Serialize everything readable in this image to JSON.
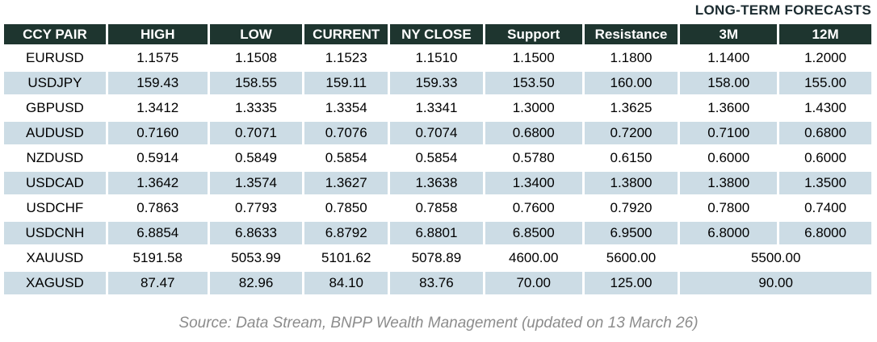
{
  "chart_data": {
    "type": "table",
    "title": "LONG-TERM FORECASTS",
    "columns": [
      "CCY PAIR",
      "HIGH",
      "LOW",
      "CURRENT",
      "NY CLOSE",
      "Support",
      "Resistance",
      "3M",
      "12M"
    ],
    "long_term_forecast_columns": [
      "3M",
      "12M"
    ],
    "rows": [
      {
        "pair": "EURUSD",
        "high": "1.1575",
        "low": "1.1508",
        "current": "1.1523",
        "ny_close": "1.1510",
        "support": "1.1500",
        "resistance": "1.1800",
        "m3": "1.1400",
        "m12": "1.2000"
      },
      {
        "pair": "USDJPY",
        "high": "159.43",
        "low": "158.55",
        "current": "159.11",
        "ny_close": "159.33",
        "support": "153.50",
        "resistance": "160.00",
        "m3": "158.00",
        "m12": "155.00"
      },
      {
        "pair": "GBPUSD",
        "high": "1.3412",
        "low": "1.3335",
        "current": "1.3354",
        "ny_close": "1.3341",
        "support": "1.3000",
        "resistance": "1.3625",
        "m3": "1.3600",
        "m12": "1.4300"
      },
      {
        "pair": "AUDUSD",
        "high": "0.7160",
        "low": "0.7071",
        "current": "0.7076",
        "ny_close": "0.7074",
        "support": "0.6800",
        "resistance": "0.7200",
        "m3": "0.7100",
        "m12": "0.6800"
      },
      {
        "pair": "NZDUSD",
        "high": "0.5914",
        "low": "0.5849",
        "current": "0.5854",
        "ny_close": "0.5854",
        "support": "0.5780",
        "resistance": "0.6150",
        "m3": "0.6000",
        "m12": "0.6000"
      },
      {
        "pair": "USDCAD",
        "high": "1.3642",
        "low": "1.3574",
        "current": "1.3627",
        "ny_close": "1.3638",
        "support": "1.3400",
        "resistance": "1.3800",
        "m3": "1.3800",
        "m12": "1.3500"
      },
      {
        "pair": "USDCHF",
        "high": "0.7863",
        "low": "0.7793",
        "current": "0.7850",
        "ny_close": "0.7858",
        "support": "0.7600",
        "resistance": "0.7920",
        "m3": "0.7800",
        "m12": "0.7400"
      },
      {
        "pair": "USDCNH",
        "high": "6.8854",
        "low": "6.8633",
        "current": "6.8792",
        "ny_close": "6.8801",
        "support": "6.8500",
        "resistance": "6.9500",
        "m3": "6.8000",
        "m12": "6.8000"
      },
      {
        "pair": "XAUUSD",
        "high": "5191.58",
        "low": "5053.99",
        "current": "5101.62",
        "ny_close": "5078.89",
        "support": "4600.00",
        "resistance": "5600.00",
        "forecast_merged": "5500.00"
      },
      {
        "pair": "XAGUSD",
        "high": "87.47",
        "low": "82.96",
        "current": "84.10",
        "ny_close": "83.76",
        "support": "70.00",
        "resistance": "125.00",
        "forecast_merged": "90.00"
      }
    ],
    "source": "Source: Data Stream, BNPP Wealth Management (updated on 13 March 26)"
  },
  "colors": {
    "header_bg": "#1e352f",
    "row_alt_bg": "#ccdce5",
    "forecast_label_text": "#1b2b30",
    "source_text": "#8c8c8c"
  }
}
